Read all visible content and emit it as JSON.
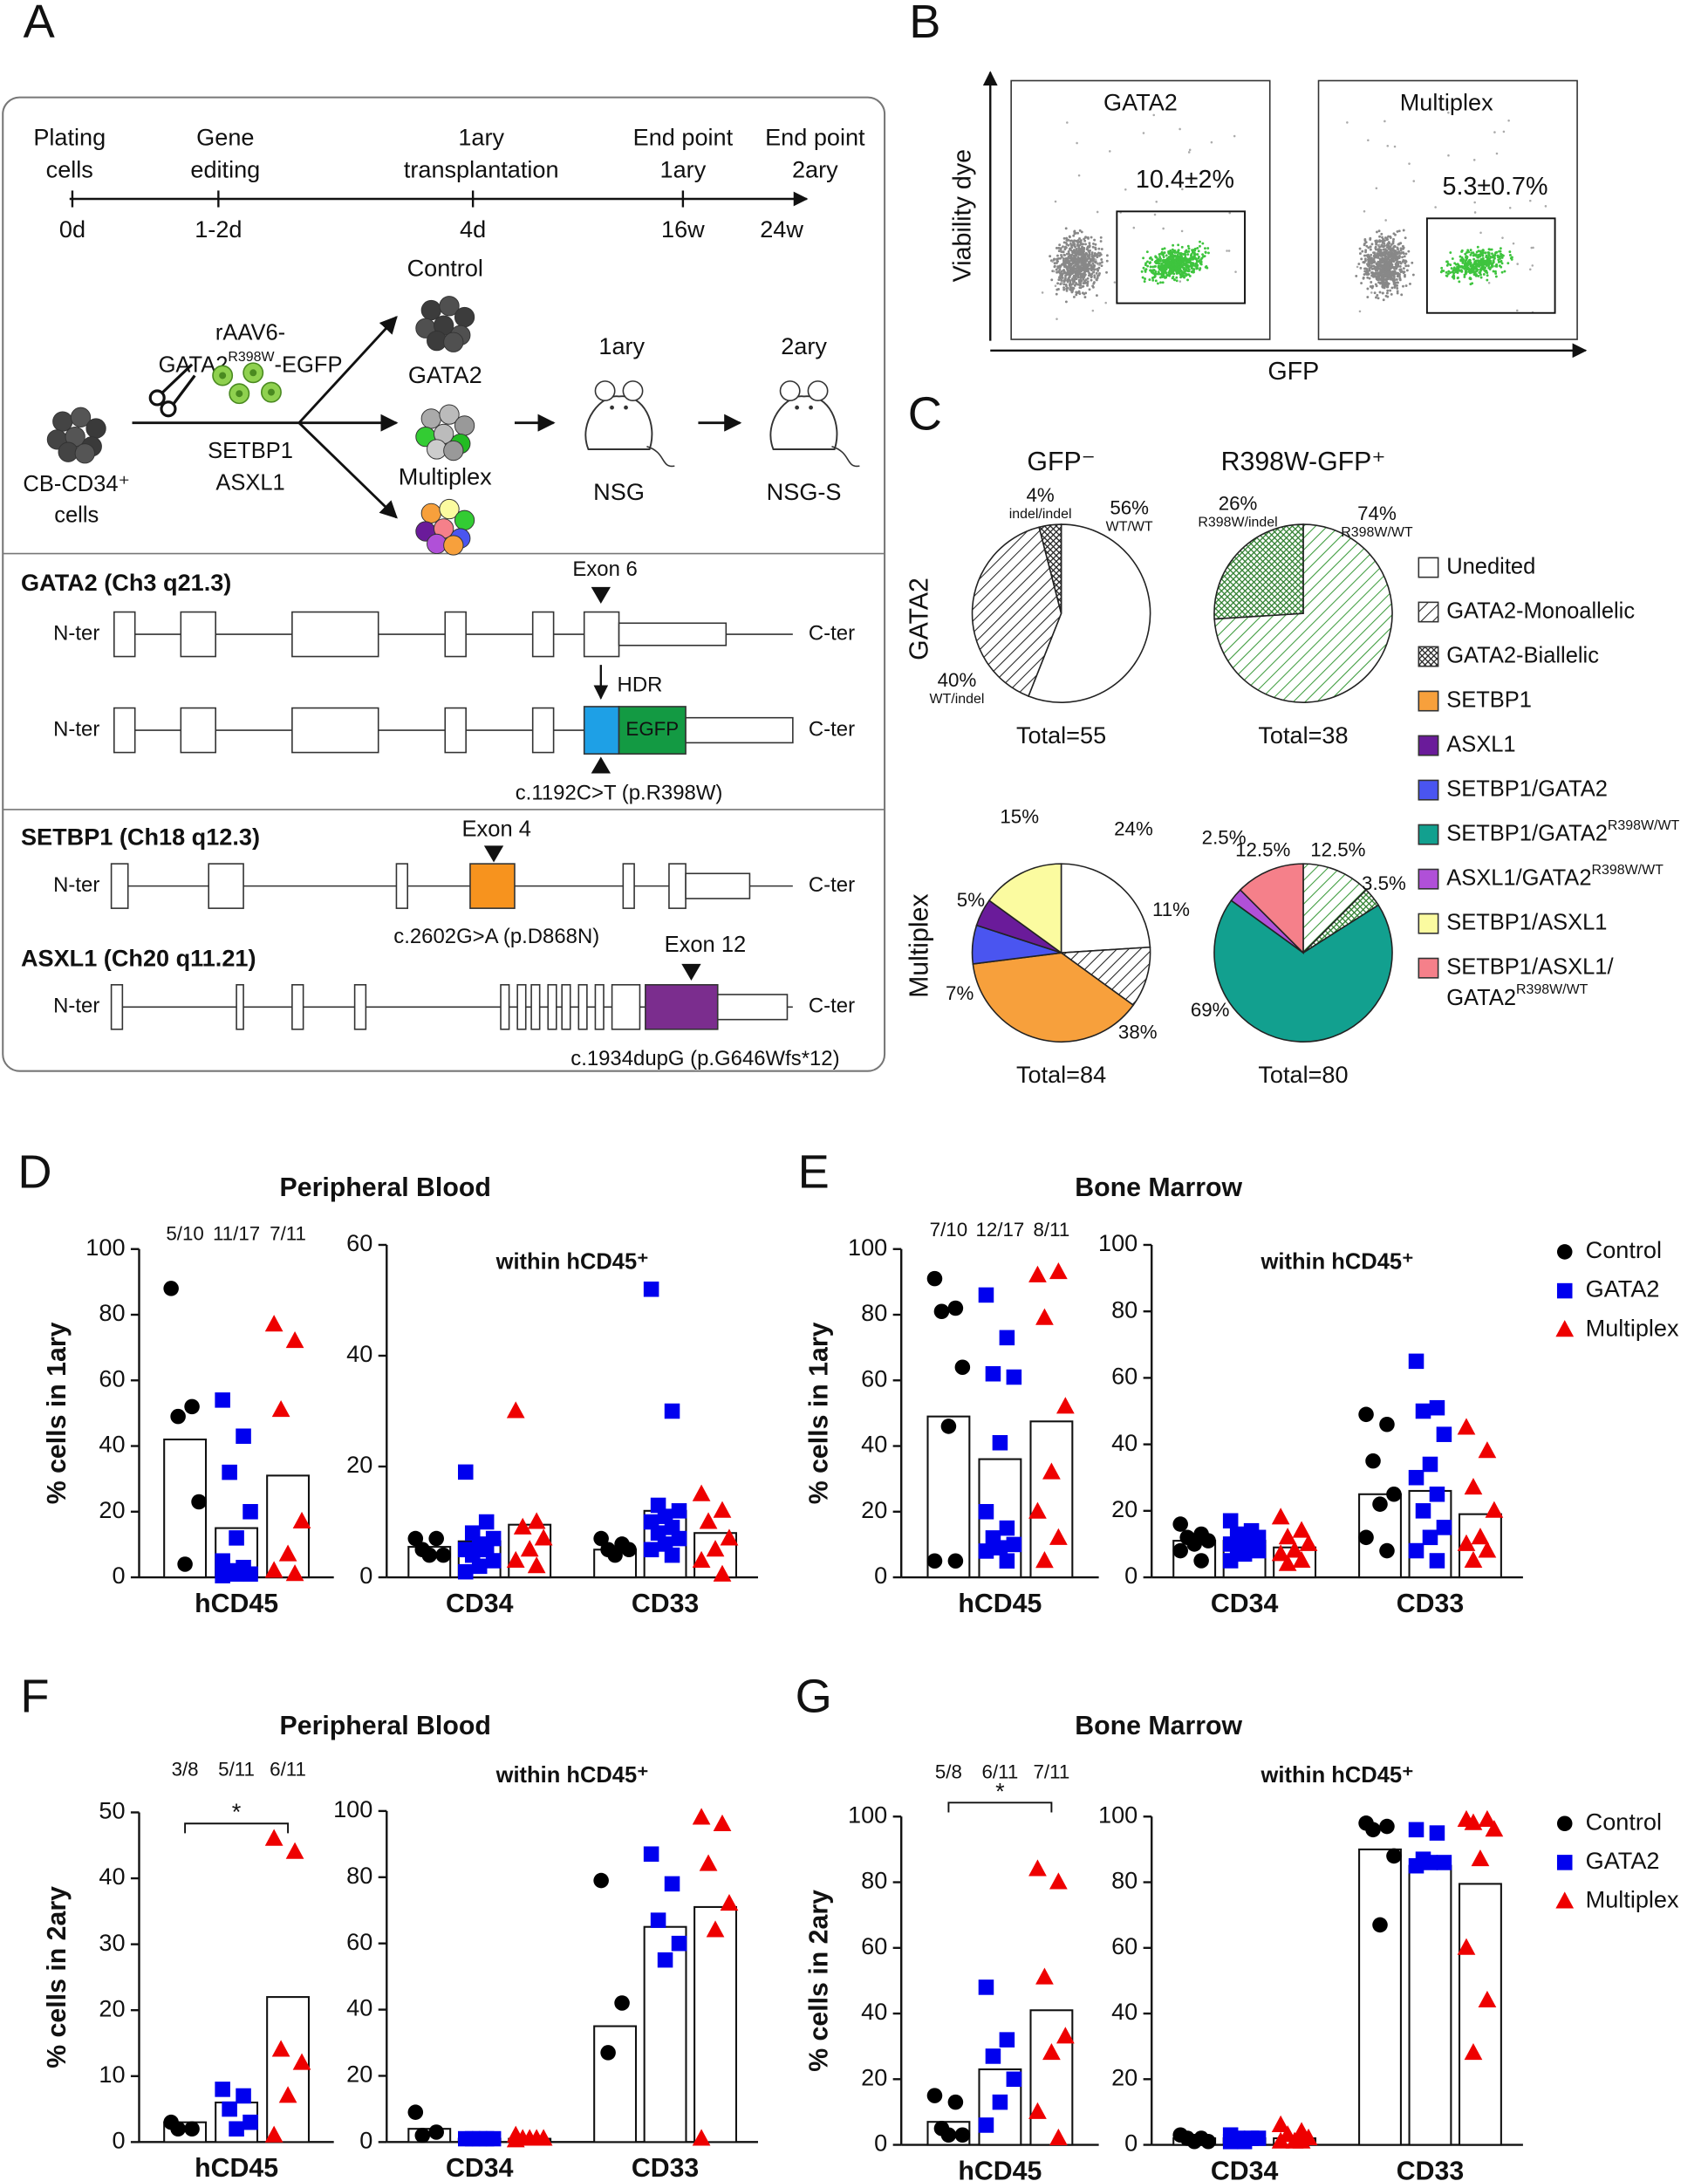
{
  "panel_letters": [
    "A",
    "B",
    "C",
    "D",
    "E",
    "F",
    "G"
  ],
  "timeline": {
    "events": [
      {
        "lines": [
          "Plating",
          "cells"
        ],
        "tick": "0d"
      },
      {
        "lines": [
          "Gene",
          "editing"
        ],
        "tick": "1-2d"
      },
      {
        "lines": [
          "1ary",
          "transplantation"
        ],
        "tick": "4d"
      },
      {
        "lines": [
          "End point",
          "1ary"
        ],
        "tick": "16w"
      },
      {
        "lines": [
          "End point",
          "2ary"
        ],
        "tick": "24w"
      }
    ]
  },
  "scheme": {
    "source": [
      "CB-CD34⁺",
      "cells"
    ],
    "vector": {
      "line1": "rAAV6-",
      "base": "GATA2",
      "sup": "R398W",
      "tail": "-EGFP"
    },
    "targets": [
      "SETBP1",
      "ASXL1"
    ],
    "arms": [
      "Control",
      "GATA2",
      "Multiplex"
    ],
    "primary": {
      "label": "1ary",
      "strain": "NSG"
    },
    "secondary": {
      "label": "2ary",
      "strain": "NSG-S"
    }
  },
  "genes": {
    "ends": [
      "N-ter",
      "C-ter"
    ],
    "gata2": {
      "title": "GATA2 (Ch3 q21.3)",
      "exon": "Exon 6",
      "hdr": "HDR",
      "egfp": "EGFP",
      "mutation": "c.1192C>T (p.R398W)"
    },
    "setbp1": {
      "title": "SETBP1 (Ch18 q12.3)",
      "exon": "Exon 4",
      "mutation": "c.2602G>A (p.D868N)"
    },
    "asxl1": {
      "title": "ASXL1 (Ch20 q11.21)",
      "exon": "Exon 12",
      "mutation": "c.1934dupG (p.G646Wfs*12)"
    }
  },
  "flow": {
    "y_label": "Viability dye",
    "x_label": "GFP",
    "plots": [
      {
        "title": "GATA2",
        "gate": "10.4±2%"
      },
      {
        "title": "Multiplex",
        "gate": "5.3±0.7%"
      }
    ]
  },
  "chart_data": [
    {
      "type": "legend",
      "items": [
        {
          "name": "Unedited",
          "color": "#ffffff",
          "hatch": "none"
        },
        {
          "name": "GATA2-Monoallelic",
          "color": "#222222",
          "hatch": "diagonal"
        },
        {
          "name": "GATA2-Biallelic",
          "color": "#222222",
          "hatch": "cross"
        },
        {
          "name": "SETBP1",
          "color": "#f7a03c",
          "hatch": "none"
        },
        {
          "name": "ASXL1",
          "color": "#6a1b9a",
          "hatch": "none"
        },
        {
          "name": "SETBP1/GATA2",
          "color": "#4a55f0",
          "hatch": "none"
        },
        {
          "name": "SETBP1/GATA2",
          "sup": "R398W/WT",
          "color": "#12a08f",
          "hatch": "none"
        },
        {
          "name": "ASXL1/GATA2",
          "sup": "R398W/WT",
          "color": "#b050d8",
          "hatch": "none"
        },
        {
          "name": "SETBP1/ASXL1",
          "color": "#fbfba0",
          "hatch": "none"
        },
        {
          "name": "SETBP1/ASXL1/",
          "name2": "GATA2",
          "sup": "R398W/WT",
          "color": "#f5808a",
          "hatch": "none"
        }
      ]
    },
    {
      "type": "pie",
      "title": "GFP⁻",
      "row_label": "GATA2",
      "values": [
        56,
        40,
        4
      ],
      "value_labels": [
        "56%",
        "40%",
        "4%"
      ],
      "sublabels": [
        "WT/WT",
        "WT/indel",
        "indel/indel"
      ],
      "colors": [
        "#ffffff",
        "#222222",
        "#222222"
      ],
      "hatches": [
        "none",
        "diagonal",
        "cross"
      ],
      "total": "Total=55"
    },
    {
      "type": "pie",
      "title": "R398W-GFP⁺",
      "values": [
        74,
        26
      ],
      "value_labels": [
        "74%",
        "26%"
      ],
      "sublabels": [
        "R398W/WT",
        "R398W/indel"
      ],
      "colors": [
        "#3a9a3a",
        "#2f7f2f"
      ],
      "hatches": [
        "diagonal",
        "cross"
      ],
      "total": "Total=38"
    },
    {
      "type": "pie",
      "row_label": "Multiplex",
      "values": [
        24,
        11,
        38,
        7,
        5,
        15
      ],
      "value_labels": [
        "24%",
        "11%",
        "38%",
        "7%",
        "5%",
        "15%"
      ],
      "colors": [
        "#ffffff",
        "#222222",
        "#f7a03c",
        "#4a55f0",
        "#6a1b9a",
        "#fbfba0"
      ],
      "hatches": [
        "none",
        "diagonal",
        "none",
        "none",
        "none",
        "none"
      ],
      "total": "Total=84"
    },
    {
      "type": "pie",
      "values": [
        12.5,
        3.5,
        69,
        2.5,
        12.5
      ],
      "value_labels": [
        "12.5%",
        "3.5%",
        "69%",
        "2.5%",
        "12.5%"
      ],
      "colors": [
        "#3a9a3a",
        "#2f7f2f",
        "#12a08f",
        "#b050d8",
        "#f5808a"
      ],
      "hatches": [
        "diagonal",
        "cross",
        "none",
        "none",
        "none"
      ],
      "total": "Total=80"
    },
    {
      "type": "bar",
      "title": "Peripheral Blood",
      "ylabel": "% cells in 1ary",
      "categories": [
        "hCD45"
      ],
      "annotations": [
        "5/10",
        "11/17",
        "7/11"
      ],
      "ylim": [
        0,
        100
      ],
      "yticks": [
        0,
        20,
        40,
        60,
        80,
        100
      ],
      "series": [
        {
          "color": "#000000",
          "marker": "circle",
          "values": [
            42
          ],
          "points": [
            [
              88,
              52,
              49,
              23,
              4
            ]
          ]
        },
        {
          "color": "#0000ee",
          "marker": "square",
          "values": [
            15
          ],
          "points": [
            [
              54,
              43,
              32,
              20,
              12,
              5,
              3,
              2,
              1,
              1,
              0.5
            ]
          ]
        },
        {
          "color": "#ee0000",
          "marker": "triangle",
          "values": [
            31
          ],
          "points": [
            [
              77,
              72,
              51,
              17,
              7,
              2,
              1
            ]
          ]
        }
      ]
    },
    {
      "type": "bar",
      "subtitle": "within hCD45⁺",
      "categories": [
        "CD34",
        "CD33"
      ],
      "ylim": [
        0,
        60
      ],
      "yticks": [
        0,
        20,
        40,
        60
      ],
      "series": [
        {
          "color": "#000000",
          "marker": "circle",
          "values": [
            5.5,
            5
          ],
          "points": [
            [
              7,
              7,
              5,
              4,
              4
            ],
            [
              7,
              6,
              5,
              5,
              4
            ]
          ]
        },
        {
          "color": "#0000ee",
          "marker": "square",
          "values": [
            6.5,
            12
          ],
          "points": [
            [
              19,
              10,
              8,
              7,
              6,
              5,
              5,
              4,
              3,
              2,
              1
            ],
            [
              52,
              30,
              13,
              12,
              11,
              10,
              9,
              8,
              7,
              6,
              5,
              4
            ]
          ]
        },
        {
          "color": "#ee0000",
          "marker": "triangle",
          "values": [
            9.5,
            8
          ],
          "points": [
            [
              30,
              10,
              9,
              7,
              5,
              3,
              2
            ],
            [
              15,
              12,
              10,
              7,
              5,
              3,
              0.5
            ]
          ]
        }
      ]
    },
    {
      "type": "bar",
      "title": "Bone Marrow",
      "ylabel": "% cells in 1ary",
      "categories": [
        "hCD45"
      ],
      "annotations": [
        "7/10",
        "12/17",
        "8/11"
      ],
      "ylim": [
        0,
        100
      ],
      "yticks": [
        0,
        20,
        40,
        60,
        80,
        100
      ],
      "series": [
        {
          "color": "#000000",
          "marker": "circle",
          "values": [
            49
          ],
          "points": [
            [
              91,
              82,
              81,
              64,
              46,
              5,
              5
            ]
          ]
        },
        {
          "color": "#0000ee",
          "marker": "square",
          "values": [
            36
          ],
          "points": [
            [
              86,
              73,
              62,
              61,
              41,
              20,
              15,
              12,
              10,
              9,
              8,
              5
            ]
          ]
        },
        {
          "color": "#ee0000",
          "marker": "triangle",
          "values": [
            47.5
          ],
          "points": [
            [
              92,
              93,
              79,
              52,
              32,
              20,
              12,
              5
            ]
          ]
        }
      ]
    },
    {
      "type": "bar",
      "subtitle": "within hCD45⁺",
      "categories": [
        "CD34",
        "CD33"
      ],
      "ylim": [
        0,
        100
      ],
      "yticks": [
        0,
        20,
        40,
        60,
        80,
        100
      ],
      "legend": "right",
      "series": [
        {
          "name": "Control",
          "color": "#000000",
          "marker": "circle",
          "values": [
            11,
            25
          ],
          "points": [
            [
              16,
              13,
              12,
              11,
              10,
              8,
              5
            ],
            [
              49,
              46,
              35,
              25,
              22,
              12,
              8
            ]
          ]
        },
        {
          "name": "GATA2",
          "color": "#0000ee",
          "marker": "square",
          "values": [
            11,
            26
          ],
          "points": [
            [
              17,
              14,
              13,
              12,
              11,
              10,
              9,
              8,
              8,
              7,
              5
            ],
            [
              65,
              51,
              50,
              43,
              34,
              30,
              25,
              20,
              15,
              12,
              8,
              5
            ]
          ]
        },
        {
          "name": "Multiplex",
          "color": "#ee0000",
          "marker": "triangle",
          "values": [
            9,
            19
          ],
          "points": [
            [
              18,
              14,
              12,
              10,
              8,
              7,
              5,
              4
            ],
            [
              45,
              38,
              27,
              20,
              12,
              10,
              8,
              5
            ]
          ]
        }
      ]
    },
    {
      "type": "bar",
      "title": "Peripheral Blood",
      "ylabel": "% cells in 2ary",
      "categories": [
        "hCD45"
      ],
      "annotations": [
        "3/8",
        "5/11",
        "6/11"
      ],
      "significance": "*",
      "ylim": [
        0,
        50
      ],
      "yticks": [
        0,
        10,
        20,
        30,
        40,
        50
      ],
      "series": [
        {
          "color": "#000000",
          "marker": "circle",
          "values": [
            3
          ],
          "points": [
            [
              3,
              2,
              2
            ]
          ]
        },
        {
          "color": "#0000ee",
          "marker": "square",
          "values": [
            6
          ],
          "points": [
            [
              8,
              7,
              5,
              3,
              2
            ]
          ]
        },
        {
          "color": "#ee0000",
          "marker": "triangle",
          "values": [
            22
          ],
          "points": [
            [
              46,
              44,
              14,
              12,
              7,
              1
            ]
          ]
        }
      ]
    },
    {
      "type": "bar",
      "subtitle": "within hCD45⁺",
      "categories": [
        "CD34",
        "CD33"
      ],
      "ylim": [
        0,
        100
      ],
      "yticks": [
        0,
        20,
        40,
        60,
        80,
        100
      ],
      "series": [
        {
          "color": "#000000",
          "marker": "circle",
          "values": [
            4,
            35
          ],
          "points": [
            [
              9,
              3,
              2
            ],
            [
              79,
              42,
              27
            ]
          ]
        },
        {
          "color": "#0000ee",
          "marker": "square",
          "values": [
            1,
            65
          ],
          "points": [
            [
              1,
              1,
              1,
              1,
              1
            ],
            [
              87,
              78,
              67,
              60,
              55
            ]
          ]
        },
        {
          "color": "#ee0000",
          "marker": "triangle",
          "values": [
            1,
            71
          ],
          "points": [
            [
              2,
              1,
              1,
              1,
              1,
              0.5
            ],
            [
              98,
              96,
              84,
              72,
              64,
              1
            ]
          ]
        }
      ]
    },
    {
      "type": "bar",
      "title": "Bone Marrow",
      "ylabel": "% cells in 2ary",
      "categories": [
        "hCD45"
      ],
      "annotations": [
        "5/8",
        "6/11",
        "7/11"
      ],
      "significance": "*",
      "ylim": [
        0,
        100
      ],
      "yticks": [
        0,
        20,
        40,
        60,
        80,
        100
      ],
      "series": [
        {
          "color": "#000000",
          "marker": "circle",
          "values": [
            7
          ],
          "points": [
            [
              15,
              13,
              5,
              3,
              3
            ]
          ]
        },
        {
          "color": "#0000ee",
          "marker": "square",
          "values": [
            23
          ],
          "points": [
            [
              48,
              32,
              27,
              20,
              13,
              6
            ]
          ]
        },
        {
          "color": "#ee0000",
          "marker": "triangle",
          "values": [
            41
          ],
          "points": [
            [
              84,
              80,
              51,
              33,
              28,
              10,
              2
            ]
          ]
        }
      ]
    },
    {
      "type": "bar",
      "subtitle": "within hCD45⁺",
      "categories": [
        "CD34",
        "CD33"
      ],
      "ylim": [
        0,
        100
      ],
      "yticks": [
        0,
        20,
        40,
        60,
        80,
        100
      ],
      "legend": "right",
      "series": [
        {
          "name": "Control",
          "color": "#000000",
          "marker": "circle",
          "values": [
            2,
            90
          ],
          "points": [
            [
              3,
              2,
              2,
              1,
              1
            ],
            [
              98,
              97,
              96,
              88,
              67
            ]
          ]
        },
        {
          "name": "GATA2",
          "color": "#0000ee",
          "marker": "square",
          "values": [
            2,
            85
          ],
          "points": [
            [
              3,
              2,
              2,
              2,
              1,
              1
            ],
            [
              96,
              95,
              87,
              86,
              86,
              85
            ]
          ]
        },
        {
          "name": "Multiplex",
          "color": "#ee0000",
          "marker": "triangle",
          "values": [
            2,
            79.5
          ],
          "points": [
            [
              6,
              4,
              3,
              2,
              1,
              1,
              1
            ],
            [
              99,
              99,
              98,
              96,
              87,
              60,
              44,
              28
            ]
          ]
        }
      ]
    }
  ]
}
